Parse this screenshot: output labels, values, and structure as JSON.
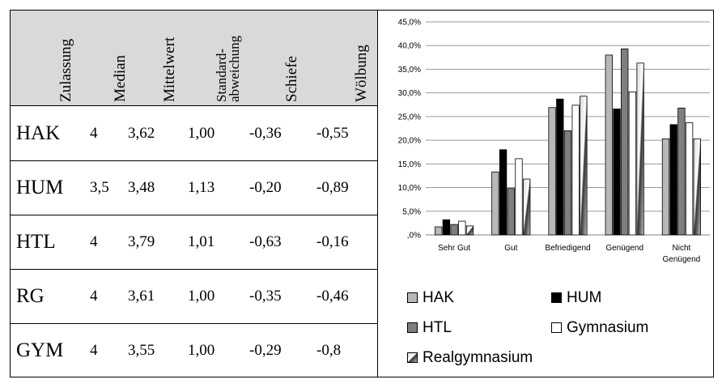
{
  "table": {
    "columns": [
      "Zulassung",
      "Median",
      "Mittelwert",
      "Standard-\nabweichung",
      "Schiefe",
      "Wölbung"
    ],
    "rows": [
      {
        "name": "HAK",
        "median": "4",
        "mittelwert": "3,62",
        "std": "1,00",
        "schiefe": "-0,36",
        "woelbung": "-0,55"
      },
      {
        "name": "HUM",
        "median": "3,5",
        "mittelwert": "3,48",
        "std": "1,13",
        "schiefe": "-0,20",
        "woelbung": "-0,89"
      },
      {
        "name": "HTL",
        "median": "4",
        "mittelwert": "3,79",
        "std": "1,01",
        "schiefe": "-0,63",
        "woelbung": "-0,16"
      },
      {
        "name": "RG",
        "median": "4",
        "mittelwert": "3,61",
        "std": "1,00",
        "schiefe": "-0,35",
        "woelbung": "-0,46"
      },
      {
        "name": "GYM",
        "median": "4",
        "mittelwert": "3,55",
        "std": "1,00",
        "schiefe": "-0,29",
        "woelbung": "-0,8"
      }
    ]
  },
  "chart_data": {
    "type": "bar",
    "title": "",
    "xlabel": "",
    "ylabel": "",
    "ylim": [
      0,
      45
    ],
    "y_ticks": [
      ",0%",
      "5,0%",
      "10,0%",
      "15,0%",
      "20,0%",
      "25,0%",
      "30,0%",
      "35,0%",
      "40,0%",
      "45,0%"
    ],
    "grid": true,
    "legend_position": "bottom",
    "categories": [
      "Sehr Gut",
      "Gut",
      "Befriedigend",
      "Genügend",
      "Nicht\nGenügend"
    ],
    "series": [
      {
        "name": "HAK",
        "color": "#b8b8b8",
        "values": [
          1.7,
          13.3,
          26.9,
          38.0,
          20.3
        ]
      },
      {
        "name": "HUM",
        "color": "#000000",
        "values": [
          3.2,
          18.0,
          28.7,
          26.6,
          23.3
        ]
      },
      {
        "name": "HTL",
        "color": "#7f7f7f",
        "values": [
          2.2,
          9.8,
          22.0,
          39.3,
          26.8
        ]
      },
      {
        "name": "Gymnasium",
        "color": "#ffffff",
        "values": [
          2.9,
          16.1,
          27.4,
          30.2,
          23.7
        ]
      },
      {
        "name": "Realgymnasium",
        "color": "#9a9a9a",
        "values": [
          1.9,
          11.8,
          29.3,
          36.3,
          20.3
        ]
      }
    ]
  }
}
